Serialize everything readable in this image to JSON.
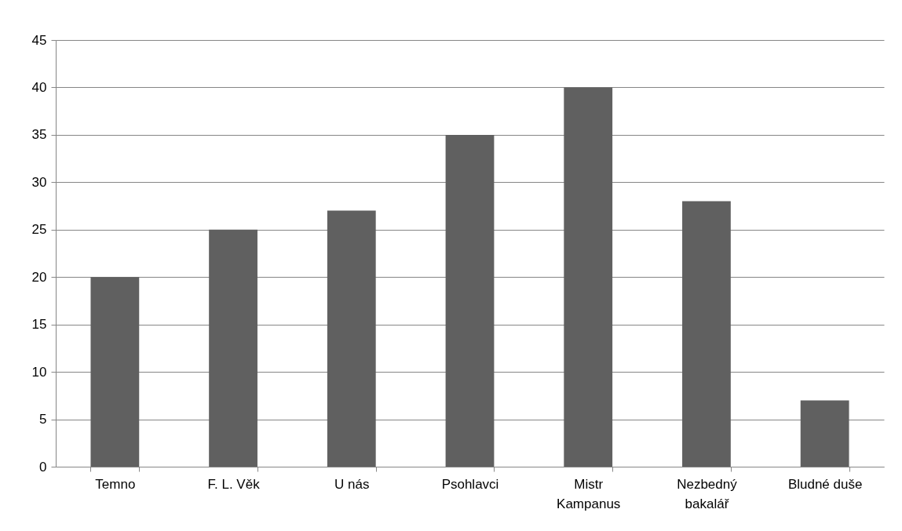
{
  "chart_data": {
    "type": "bar",
    "categories": [
      "Temno",
      "F. L. Věk",
      "U nás",
      "Psohlavci",
      "Mistr Kampanus",
      "Nezbedný bakalář",
      "Bludné duše"
    ],
    "values": [
      20,
      25,
      27,
      35,
      40,
      28,
      7
    ],
    "color": "#606060",
    "ylim": [
      0,
      45
    ],
    "yticks": [
      0,
      5,
      10,
      15,
      20,
      25,
      30,
      35,
      40,
      45
    ],
    "grid": "y"
  }
}
